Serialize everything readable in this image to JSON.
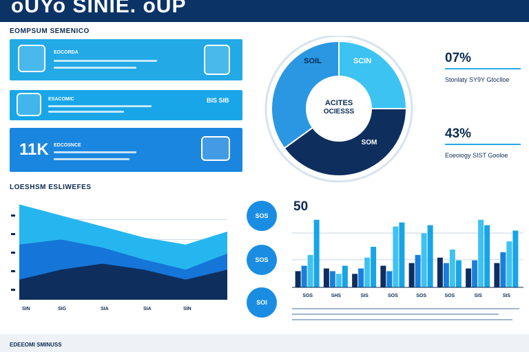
{
  "header": {
    "title": "oUYo SINIE. oUP"
  },
  "left_section_title": "EOMPSUM SEMENICO",
  "cards": [
    {
      "heading": "EOCORDA",
      "big": "",
      "metric": "",
      "color": "#22a9e6"
    },
    {
      "heading": "ESACOMIC",
      "big": "",
      "metric": "BIS SIB",
      "color": "#19a6e8"
    },
    {
      "heading": "EDCOSNCE",
      "big": "11K",
      "metric": "",
      "color": "#1b86e0"
    }
  ],
  "donut": {
    "center_line1": "ACITES",
    "center_line2": "OCIESSS",
    "label_top_left": "SOIL",
    "label_top_right": "SCIN",
    "label_bottom_right": "SOM",
    "segments": [
      {
        "value": 25,
        "color": "#3cc3f2"
      },
      {
        "value": 40,
        "color": "#0e2f5e"
      },
      {
        "value": 35,
        "color": "#2b97e2"
      }
    ]
  },
  "stats": [
    {
      "pct": "07%",
      "label": "Stonlaty SY9Y Gtoclloe"
    },
    {
      "pct": "43%",
      "label": "Eoeoiogy SIST Gooloe"
    }
  ],
  "lower_section_title": "LOESHSM ESLIWEFES",
  "circles": [
    "SOS",
    "SOS",
    "SOI"
  ],
  "area_axis_labels": [
    "SIN",
    "SIG",
    "SIA",
    "SIA",
    "SIN"
  ],
  "chart_data": [
    {
      "type": "area",
      "title": "",
      "xlabel": "",
      "ylabel": "",
      "x": [
        0,
        1,
        2,
        3,
        4,
        5
      ],
      "ylim": [
        0,
        100
      ],
      "series": [
        {
          "values": [
            95,
            84,
            73,
            62,
            55,
            68
          ],
          "color": "#26b6ef"
        },
        {
          "values": [
            55,
            60,
            52,
            40,
            30,
            46
          ],
          "color": "#1675d8"
        },
        {
          "values": [
            20,
            30,
            36,
            30,
            20,
            30
          ],
          "color": "#0e2f5e"
        }
      ]
    },
    {
      "type": "bar",
      "title": "50",
      "xlabel": "",
      "ylabel": "",
      "ylim": [
        0,
        60
      ],
      "categories": [
        "Q01",
        "Q02",
        "Q03",
        "Q04",
        "Q05",
        "Q06",
        "Q07",
        "Q08"
      ],
      "category_labels": [
        "SOS",
        "SHS",
        "SIS",
        "SOS",
        "SOS",
        "SOS",
        "SIS",
        "SIS"
      ],
      "series": [
        {
          "values": [
            12,
            14,
            10,
            16,
            18,
            22,
            14,
            18
          ],
          "color": "#0e2f5e"
        },
        {
          "values": [
            16,
            12,
            14,
            12,
            24,
            18,
            20,
            26
          ],
          "color": "#1a7fdc"
        },
        {
          "values": [
            24,
            10,
            22,
            45,
            40,
            28,
            50,
            34
          ],
          "color": "#3fc2f0"
        },
        {
          "values": [
            50,
            16,
            30,
            48,
            46,
            20,
            46,
            42
          ],
          "color": "#17a5e6"
        }
      ]
    }
  ],
  "footer": {
    "text": "EDEEOMI SMINUSS"
  }
}
